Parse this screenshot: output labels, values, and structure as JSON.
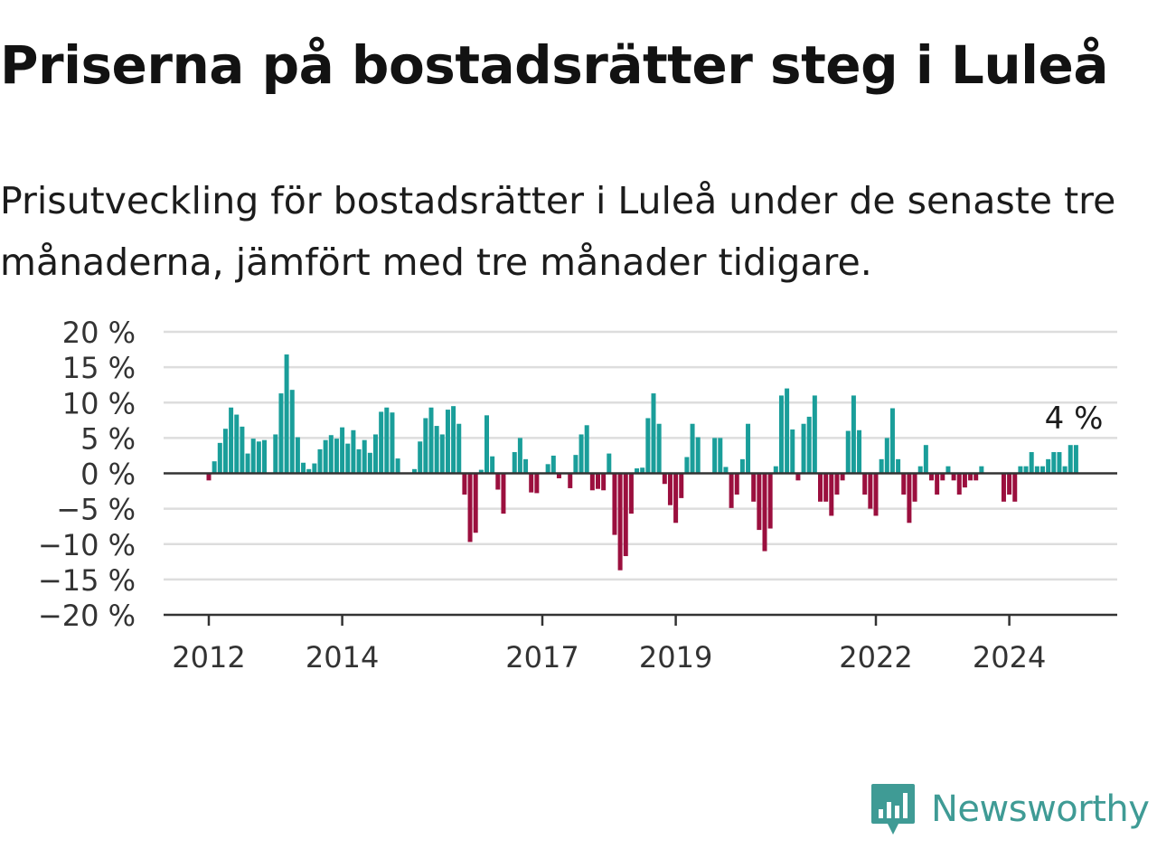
{
  "title": "Priserna på bostadsrätter steg i Luleå",
  "subtitle": "Prisutveckling för bostadsrätter i Luleå under de senaste tre månaderna, jämfört med tre månader tidigare.",
  "brand": {
    "name": "Newsworthy",
    "icon": "newsworthy-bar-chart-icon",
    "color": "#3f9b95"
  },
  "colors": {
    "positive": "#1a9e9a",
    "negative": "#9b0f3e",
    "gridline": "#dddddd",
    "axis": "#333333"
  },
  "chart_data": {
    "type": "bar",
    "x_start": "2012-01",
    "frequency": "monthly",
    "ylabel": "",
    "xlabel": "",
    "ylim": [
      -20,
      20
    ],
    "y_ticks": [
      20,
      15,
      10,
      5,
      0,
      -5,
      -10,
      -15,
      -20
    ],
    "y_tick_labels": [
      "20 %",
      "15 %",
      "10 %",
      "5 %",
      "0 %",
      "−5 %",
      "−10 %",
      "−15 %",
      "−20 %"
    ],
    "x_ticks": [
      "2012",
      "2014",
      "2017",
      "2019",
      "2022",
      "2024"
    ],
    "x_tick_months": [
      "2012-01",
      "2014-01",
      "2017-01",
      "2019-01",
      "2022-01",
      "2024-01"
    ],
    "grid": true,
    "annotation": {
      "text": "4 %",
      "at": "last"
    },
    "values": [
      -1,
      1.7,
      4.3,
      6.3,
      9.3,
      8.3,
      6.6,
      2.8,
      4.9,
      4.5,
      4.7,
      0,
      5.5,
      11.3,
      16.8,
      11.8,
      5.1,
      1.5,
      0.6,
      1.4,
      3.4,
      4.7,
      5.4,
      4.9,
      6.5,
      4.2,
      6.1,
      3.4,
      4.7,
      2.9,
      5.5,
      8.7,
      9.3,
      8.6,
      2.1,
      0,
      0,
      0.6,
      4.5,
      7.8,
      9.3,
      6.7,
      5.5,
      9,
      9.5,
      7,
      -3,
      -9.7,
      -8.4,
      0.5,
      8.2,
      2.4,
      -2.3,
      -5.7,
      0,
      3,
      5,
      2,
      -2.7,
      -2.8,
      0,
      1.3,
      2.5,
      -0.7,
      0,
      -2.1,
      2.6,
      5.5,
      6.8,
      -2.4,
      -2.2,
      -2.4,
      2.8,
      -8.7,
      -13.7,
      -11.7,
      -5.7,
      0.7,
      0.8,
      7.8,
      11.3,
      7,
      -1.5,
      -4.5,
      -7,
      -3.5,
      2.3,
      7,
      5.1,
      0,
      0,
      5,
      5,
      0.9,
      -4.9,
      -3,
      2,
      7,
      -4,
      -8,
      -11,
      -7.8,
      1,
      11,
      12,
      6.2,
      -1,
      7,
      8,
      11,
      -4,
      -4,
      -6,
      -3,
      -1,
      6,
      11,
      6.1,
      -3,
      -5,
      -6,
      2,
      5,
      9.2,
      2,
      -3,
      -7,
      -4,
      1,
      4,
      -1,
      -3,
      -1,
      1,
      -1,
      -3,
      -2,
      -1,
      -1,
      1,
      0,
      0,
      0,
      -4,
      -3,
      -4,
      1,
      1,
      3,
      1,
      1,
      2,
      3,
      3,
      1,
      4,
      4
    ]
  }
}
